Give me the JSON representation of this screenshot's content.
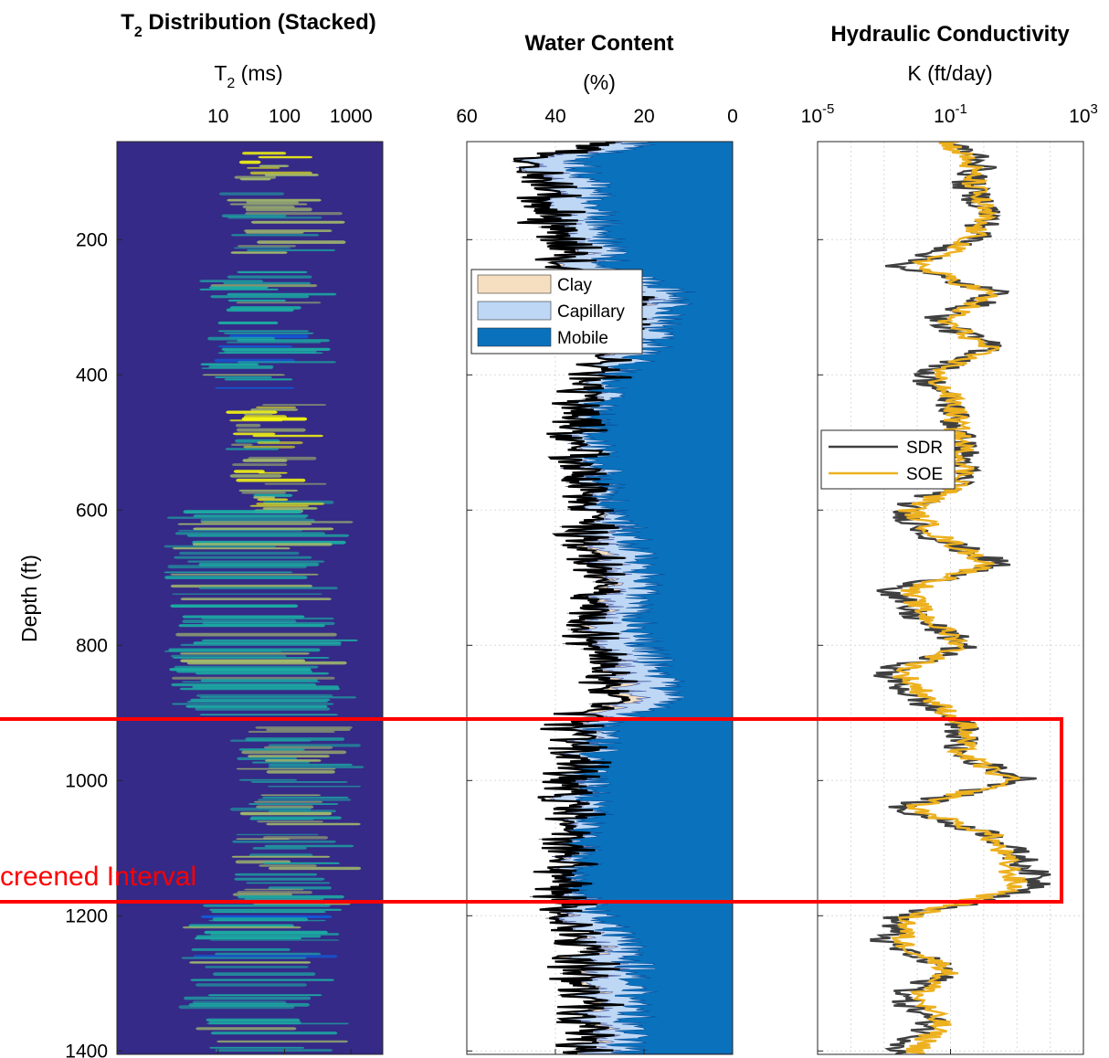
{
  "chart_data": [
    {
      "type": "heatmap",
      "title": "T₂ Distribution (Stacked)",
      "title_main": "T",
      "title_sub": "2",
      "title_rest": " Distribution (Stacked)",
      "xlabel_main": "T",
      "xlabel_sub": "2",
      "xlabel_rest": " (ms)",
      "ylabel": "Depth (ft)",
      "x_scale": "log",
      "xlim": [
        0.3,
        3000
      ],
      "x_ticks": [
        10,
        100,
        1000
      ],
      "x_tick_labels": [
        "10",
        "100",
        "1000"
      ],
      "ylim": [
        55,
        1405
      ],
      "y_ticks": [
        200,
        400,
        600,
        800,
        1000,
        1200,
        1400
      ],
      "y_tick_labels": [
        "200",
        "400",
        "600",
        "800",
        "1000",
        "1200",
        "1400"
      ],
      "colormap": "parula",
      "colors": {
        "background": "#352a87",
        "low": "#0f5cdd",
        "mid": "#1ab3a4",
        "high": "#a5be6a",
        "peak": "#f9fb0e"
      },
      "bright_zones": [
        {
          "depth": [
            70,
            110
          ],
          "t2_ms": [
            30,
            90
          ],
          "level": 0.95
        },
        {
          "depth": [
            130,
            220
          ],
          "t2_ms": [
            20,
            250
          ],
          "level": 0.6
        },
        {
          "depth": [
            240,
            420
          ],
          "t2_ms": [
            10,
            150
          ],
          "level": 0.45
        },
        {
          "depth": [
            440,
            600
          ],
          "t2_ms": [
            25,
            110
          ],
          "level": 0.85
        },
        {
          "depth": [
            600,
            910
          ],
          "t2_ms": [
            3,
            300
          ],
          "level": 0.5
        },
        {
          "depth": [
            920,
            1180
          ],
          "t2_ms": [
            30,
            400
          ],
          "level": 0.55
        },
        {
          "depth": [
            1180,
            1400
          ],
          "t2_ms": [
            5,
            250
          ],
          "level": 0.45
        }
      ]
    },
    {
      "type": "area",
      "title": "Water Content",
      "xlabel": "(%)",
      "x_reversed": true,
      "xlim": [
        60,
        0
      ],
      "x_ticks": [
        60,
        40,
        20,
        0
      ],
      "x_tick_labels": [
        "60",
        "40",
        "20",
        "0"
      ],
      "ylim": [
        55,
        1405
      ],
      "y_ticks": [
        200,
        400,
        600,
        800,
        1000,
        1200,
        1400
      ],
      "grid": true,
      "legend_placement": "upper-left",
      "series": [
        {
          "name": "Clay",
          "color": "#f5dfc0"
        },
        {
          "name": "Capillary",
          "color": "#bdd7f5"
        },
        {
          "name": "Mobile",
          "color": "#0a72bd"
        }
      ],
      "total_line_color": "#000000",
      "depth_profile": {
        "depth": [
          60,
          80,
          120,
          160,
          200,
          240,
          280,
          320,
          360,
          400,
          440,
          480,
          520,
          560,
          600,
          640,
          680,
          720,
          760,
          800,
          840,
          880,
          920,
          960,
          1000,
          1040,
          1080,
          1120,
          1160,
          1200,
          1240,
          1280,
          1320,
          1360,
          1400
        ],
        "mobile": [
          22,
          34,
          32,
          30,
          28,
          28,
          12,
          16,
          18,
          26,
          30,
          30,
          30,
          28,
          28,
          22,
          20,
          20,
          22,
          20,
          16,
          14,
          30,
          30,
          32,
          30,
          34,
          34,
          36,
          30,
          24,
          22,
          22,
          22,
          24
        ],
        "capillary": [
          8,
          10,
          10,
          10,
          9,
          8,
          8,
          10,
          8,
          4,
          3,
          3,
          3,
          3,
          3,
          6,
          8,
          8,
          8,
          10,
          10,
          10,
          4,
          4,
          4,
          5,
          2,
          2,
          2,
          7,
          9,
          9,
          9,
          9,
          8
        ],
        "clay": [
          0,
          0,
          0,
          0,
          0,
          1,
          3,
          1,
          1,
          0,
          0,
          0,
          0,
          0,
          0,
          3,
          2,
          2,
          2,
          1,
          2,
          4,
          1,
          0,
          0,
          0,
          0,
          0,
          0,
          1,
          2,
          2,
          2,
          2,
          2
        ]
      }
    },
    {
      "type": "line",
      "title": "Hydraulic Conductivity",
      "xlabel": "K (ft/day)",
      "x_scale": "log",
      "xlim": [
        1e-05,
        1000
      ],
      "x_ticks": [
        1e-05,
        0.1,
        1000
      ],
      "x_tick_labels": [
        {
          "base": "10",
          "exp": "-5"
        },
        {
          "base": "10",
          "exp": "-1"
        },
        {
          "base": "10",
          "exp": "3"
        }
      ],
      "ylim": [
        55,
        1405
      ],
      "y_ticks": [
        200,
        400,
        600,
        800,
        1000,
        1200,
        1400
      ],
      "grid": true,
      "legend_placement": "left-middle",
      "series": [
        {
          "name": "SDR",
          "color": "#404040"
        },
        {
          "name": "SOE",
          "color": "#edb120"
        }
      ],
      "depth_profile": {
        "depth": [
          60,
          80,
          120,
          160,
          200,
          240,
          280,
          320,
          360,
          400,
          440,
          480,
          520,
          560,
          600,
          640,
          680,
          720,
          760,
          800,
          840,
          880,
          920,
          960,
          1000,
          1040,
          1080,
          1120,
          1160,
          1200,
          1240,
          1280,
          1320,
          1360,
          1400
        ],
        "log10_k_sdr": [
          -1,
          0,
          -0.5,
          0.2,
          -0.3,
          -2.5,
          0.5,
          -1.5,
          0.3,
          -1.8,
          -1,
          -0.8,
          -0.6,
          -0.7,
          -2.5,
          -1.5,
          0.5,
          -2.8,
          -2,
          -0.5,
          -3,
          -2,
          -0.6,
          -0.8,
          1.3,
          -2.7,
          0.3,
          1.2,
          1.8,
          -2.5,
          -3,
          -1,
          -2.5,
          -1.5,
          -2.5
        ],
        "log10_k_soe": [
          -1,
          -0.5,
          -0.3,
          0,
          -0.4,
          -2,
          0.2,
          -1.2,
          0.1,
          -1.5,
          -0.9,
          -0.8,
          -0.6,
          -0.6,
          -2.2,
          -1.3,
          0.2,
          -2.3,
          -1.7,
          -0.6,
          -2.5,
          -1.6,
          -0.5,
          -0.7,
          0.8,
          -2.2,
          0.2,
          0.7,
          1,
          -2.2,
          -2.5,
          -1,
          -2,
          -1.3,
          -2
        ]
      }
    }
  ],
  "annotation": {
    "label": "Screened Interval",
    "depth_range": [
      910,
      1180
    ],
    "color": "#ff0000"
  }
}
